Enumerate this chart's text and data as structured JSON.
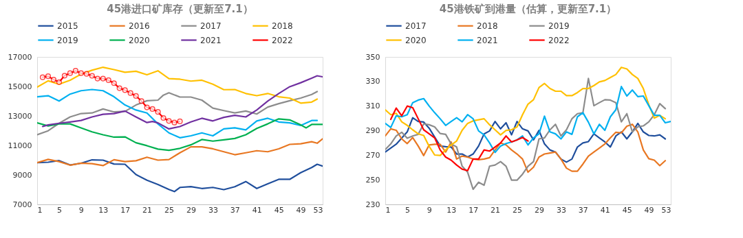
{
  "chart_data": [
    {
      "type": "line",
      "title": "45港进口矿库存（更新至7.1）",
      "xlim": [
        1,
        53
      ],
      "xticks": [
        1,
        5,
        9,
        13,
        17,
        21,
        25,
        29,
        33,
        37,
        41,
        45,
        49,
        53
      ],
      "ylim": [
        7000,
        17000
      ],
      "yticks": [
        7000,
        9000,
        11000,
        13000,
        15000,
        17000
      ],
      "grid": false,
      "legend": "top",
      "marker": "none",
      "series": [
        {
          "name": "2015",
          "color": "#1f4e9c",
          "x": [
            1,
            3,
            5,
            7,
            9,
            11,
            13,
            15,
            17,
            19,
            21,
            23,
            25,
            26,
            27,
            29,
            31,
            33,
            35,
            37,
            39,
            41,
            43,
            45,
            47,
            49,
            51,
            52,
            53
          ],
          "values": [
            9830,
            9860,
            9970,
            9670,
            9790,
            10020,
            10000,
            9740,
            9720,
            9020,
            8640,
            8350,
            8010,
            7870,
            8150,
            8200,
            8080,
            8150,
            8000,
            8200,
            8550,
            8080,
            8400,
            8700,
            8700,
            9150,
            9500,
            9720,
            9600
          ]
        },
        {
          "name": "2016",
          "color": "#e87722",
          "x": [
            1,
            3,
            5,
            7,
            9,
            11,
            13,
            15,
            17,
            19,
            21,
            23,
            25,
            27,
            29,
            31,
            33,
            35,
            37,
            39,
            41,
            43,
            45,
            47,
            49,
            51,
            52,
            53
          ],
          "values": [
            9830,
            10050,
            9900,
            9660,
            9800,
            9760,
            9630,
            10030,
            9900,
            9960,
            10200,
            10000,
            10040,
            10500,
            10900,
            10900,
            10770,
            10570,
            10370,
            10500,
            10640,
            10570,
            10770,
            11070,
            11110,
            11250,
            11150,
            11450
          ]
        },
        {
          "name": "2017",
          "color": "#8c8c8c",
          "x": [
            1,
            3,
            5,
            7,
            9,
            11,
            13,
            15,
            17,
            19,
            21,
            23,
            24,
            25,
            27,
            29,
            31,
            33,
            35,
            37,
            39,
            41,
            43,
            45,
            47,
            49,
            51,
            52
          ],
          "values": [
            11720,
            11990,
            12500,
            12930,
            13160,
            13200,
            13470,
            13270,
            13310,
            13740,
            14030,
            14070,
            14410,
            14570,
            14280,
            14280,
            14070,
            13530,
            13360,
            13200,
            13330,
            13130,
            13600,
            13830,
            14030,
            14210,
            14450,
            14650
          ]
        },
        {
          "name": "2018",
          "color": "#ffc000",
          "x": [
            1,
            3,
            5,
            7,
            9,
            11,
            13,
            15,
            17,
            19,
            21,
            23,
            25,
            27,
            29,
            31,
            33,
            35,
            37,
            39,
            41,
            43,
            45,
            47,
            49,
            51,
            52
          ],
          "values": [
            14950,
            15380,
            15150,
            15420,
            15830,
            16100,
            16300,
            16140,
            15960,
            16030,
            15790,
            16060,
            15530,
            15490,
            15360,
            15420,
            15150,
            14780,
            14790,
            14520,
            14370,
            14520,
            14300,
            14210,
            13870,
            13940,
            14140
          ]
        },
        {
          "name": "2019",
          "color": "#00b0f0",
          "x": [
            1,
            3,
            5,
            7,
            9,
            11,
            13,
            15,
            17,
            19,
            21,
            23,
            25,
            27,
            29,
            31,
            33,
            35,
            37,
            39,
            41,
            43,
            45,
            47,
            49,
            51,
            52
          ],
          "values": [
            14300,
            14370,
            14010,
            14480,
            14710,
            14790,
            14710,
            14300,
            13740,
            13400,
            13200,
            12460,
            11850,
            11520,
            11650,
            11850,
            11650,
            12120,
            12190,
            12050,
            12660,
            12840,
            12590,
            12530,
            12350,
            12690,
            12690
          ]
        },
        {
          "name": "2020",
          "color": "#00b050",
          "x": [
            1,
            3,
            5,
            7,
            9,
            11,
            13,
            15,
            17,
            19,
            21,
            23,
            25,
            27,
            29,
            31,
            33,
            35,
            37,
            39,
            41,
            43,
            45,
            47,
            49,
            50,
            51,
            53
          ],
          "values": [
            12530,
            12320,
            12460,
            12460,
            12190,
            11920,
            11720,
            11560,
            11580,
            11180,
            10980,
            10750,
            10670,
            10800,
            11040,
            11400,
            11290,
            11380,
            11470,
            11720,
            12150,
            12460,
            12800,
            12730,
            12390,
            12190,
            12420,
            12420
          ]
        },
        {
          "name": "2021",
          "color": "#7030a0",
          "x": [
            2,
            3,
            5,
            7,
            9,
            11,
            13,
            15,
            17,
            19,
            21,
            22,
            23,
            25,
            27,
            29,
            31,
            33,
            35,
            37,
            39,
            41,
            43,
            45,
            47,
            49,
            51,
            52,
            53
          ],
          "values": [
            12280,
            12390,
            12500,
            12590,
            12690,
            12930,
            13110,
            13160,
            13330,
            12930,
            12550,
            12620,
            12530,
            12120,
            12280,
            12590,
            12840,
            12660,
            12900,
            13040,
            12930,
            13400,
            14010,
            14520,
            14980,
            15250,
            15560,
            15720,
            15650
          ]
        },
        {
          "name": "2022",
          "color": "#ff0000",
          "marker": "circle",
          "x": [
            2,
            3,
            4,
            5,
            6,
            7,
            8,
            9,
            10,
            11,
            12,
            13,
            14,
            15,
            16,
            17,
            18,
            19,
            20,
            21,
            22,
            23,
            24,
            25,
            26,
            27
          ],
          "values": [
            15620,
            15690,
            15460,
            15290,
            15730,
            15900,
            16060,
            15900,
            15850,
            15720,
            15530,
            15530,
            15420,
            15220,
            14880,
            14750,
            14550,
            14350,
            14010,
            13580,
            13470,
            13270,
            12860,
            12660,
            12550,
            12630
          ]
        }
      ]
    },
    {
      "type": "line",
      "title": "45港铁矿到港量（估算，更新至7.1）",
      "xlim": [
        1,
        53
      ],
      "xticks": [
        1,
        5,
        9,
        13,
        17,
        21,
        25,
        29,
        33,
        37,
        41,
        45,
        49,
        53
      ],
      "ylim": [
        230,
        350
      ],
      "yticks": [
        230,
        250,
        270,
        290,
        310,
        330,
        350
      ],
      "grid": false,
      "legend": "top",
      "marker": "none",
      "series": [
        {
          "name": "2017",
          "color": "#1f4e9c",
          "x": [
            1,
            3,
            5,
            6,
            7,
            8,
            9,
            11,
            12,
            13,
            14,
            15,
            16,
            17,
            18,
            19,
            20,
            21,
            22,
            23,
            24,
            25,
            26,
            27,
            28,
            29,
            30,
            31,
            32,
            33,
            34,
            35,
            36,
            37,
            38,
            39,
            40,
            41,
            42,
            43,
            44,
            45,
            46,
            47,
            48,
            49,
            50,
            51,
            52
          ],
          "values": [
            272.6,
            279,
            289,
            300.5,
            297.5,
            297,
            292,
            277.5,
            277,
            276.7,
            271,
            271,
            268.5,
            271,
            277.5,
            287.4,
            289.8,
            297.5,
            291.5,
            296.4,
            286.6,
            297.5,
            291.5,
            289.8,
            282.5,
            290.2,
            279.2,
            274.3,
            272.6,
            266.9,
            264.4,
            266.9,
            276.7,
            280,
            281.1,
            287.4,
            284.1,
            280.8,
            276.7,
            285.7,
            289,
            283.3,
            289,
            295.9,
            289,
            286.1,
            285.7,
            286.6,
            283.3
          ]
        },
        {
          "name": "2018",
          "color": "#e87722",
          "x": [
            1,
            2,
            3,
            4,
            5,
            6,
            7,
            8,
            9,
            10,
            11,
            12,
            13,
            14,
            15,
            16,
            17,
            18,
            19,
            20,
            21,
            22,
            23,
            24,
            25,
            26,
            27,
            28,
            29,
            30,
            31,
            32,
            33,
            34,
            35,
            36,
            37,
            38,
            39,
            40,
            41,
            42,
            43,
            44,
            45,
            46,
            47,
            48,
            49,
            50,
            51,
            52
          ],
          "values": [
            285.7,
            291.5,
            290.3,
            283.3,
            279.5,
            284.4,
            277.5,
            269.7,
            278.4,
            278.9,
            278.9,
            272.6,
            280.8,
            266.9,
            269.3,
            268.5,
            266.9,
            266.4,
            266.9,
            268,
            274.3,
            280,
            278.4,
            274.3,
            271,
            266.9,
            256.2,
            260.3,
            268.5,
            271,
            271.8,
            272.6,
            266.9,
            259.5,
            257,
            257,
            262.8,
            269.3,
            272.6,
            275.9,
            279.2,
            284.1,
            288.7,
            288.2,
            293.6,
            295.2,
            289,
            274.3,
            267.2,
            266,
            261.5,
            265.6
          ]
        },
        {
          "name": "2019",
          "color": "#8c8c8c",
          "x": [
            1,
            2,
            3,
            4,
            5,
            6,
            7,
            8,
            9,
            10,
            11,
            12,
            13,
            14,
            15,
            16,
            17,
            18,
            19,
            20,
            21,
            22,
            23,
            24,
            25,
            26,
            27,
            28,
            29,
            30,
            31,
            32,
            33,
            34,
            35,
            36,
            37,
            38,
            39,
            40,
            41,
            42,
            43,
            44,
            45,
            46,
            47,
            48,
            49,
            50,
            51,
            52
          ],
          "values": [
            274.6,
            279.2,
            285.7,
            288.7,
            283.8,
            285.7,
            287,
            295.6,
            294.8,
            293.1,
            287.7,
            287,
            279.2,
            276.7,
            261.1,
            256.2,
            242.3,
            248,
            245.6,
            261.1,
            262,
            264.8,
            261.1,
            249.7,
            249.7,
            254.6,
            261.1,
            264.8,
            283.3,
            284.1,
            290.7,
            295.2,
            285.7,
            290.7,
            299.7,
            303.8,
            304.6,
            332.5,
            310.3,
            312.8,
            315.2,
            314.9,
            312.8,
            297.2,
            303.8,
            289,
            293.1,
            293.9,
            297.2,
            303,
            312,
            307.9
          ]
        },
        {
          "name": "2020",
          "color": "#ffc000",
          "x": [
            1,
            2,
            3,
            4,
            5,
            6,
            7,
            8,
            9,
            10,
            11,
            12,
            13,
            14,
            15,
            16,
            17,
            18,
            19,
            20,
            21,
            22,
            23,
            24,
            25,
            26,
            27,
            28,
            29,
            30,
            31,
            32,
            33,
            34,
            35,
            36,
            37,
            38,
            39,
            40,
            41,
            42,
            43,
            44,
            45,
            46,
            47,
            48,
            49,
            50,
            51,
            52
          ],
          "values": [
            307,
            303,
            304.1,
            297.2,
            294.3,
            290.7,
            287.4,
            286.1,
            277.2,
            270.2,
            269.8,
            274.3,
            278.4,
            281.6,
            290.3,
            295.9,
            298,
            298.9,
            299.7,
            294.8,
            290.7,
            286.6,
            290.2,
            290.7,
            293.1,
            303,
            311.6,
            315.2,
            325.1,
            328.4,
            324.3,
            322.1,
            322.1,
            318.5,
            318.5,
            321,
            324.3,
            324.3,
            326.7,
            329.7,
            330.8,
            333.3,
            335.7,
            341.5,
            340.2,
            335.7,
            332.5,
            324.3,
            311.1,
            300.2,
            302.5,
            299.7
          ]
        },
        {
          "name": "2021",
          "color": "#00b0f0",
          "x": [
            1,
            2,
            3,
            4,
            5,
            6,
            7,
            8,
            9,
            10,
            11,
            12,
            13,
            14,
            15,
            16,
            17,
            18,
            19,
            20,
            21,
            22,
            23,
            24,
            25,
            26,
            27,
            28,
            29,
            30,
            31,
            32,
            33,
            34,
            35,
            36,
            37,
            38,
            39,
            40,
            41,
            42,
            43,
            44,
            45,
            46,
            47,
            48,
            49,
            50,
            51,
            52,
            53
          ],
          "values": [
            295.9,
            292.6,
            302.1,
            301.3,
            303,
            312.8,
            314.9,
            316.1,
            310,
            304.6,
            299.7,
            294.3,
            297.5,
            300.5,
            297.2,
            303,
            299.7,
            289.8,
            286.6,
            280,
            272.3,
            277.5,
            279.5,
            280.8,
            282.5,
            285.7,
            278.4,
            284.1,
            287.4,
            301.8,
            289,
            287.4,
            283.3,
            289,
            287,
            301.3,
            304.6,
            296.9,
            287.4,
            295.2,
            290.3,
            301.3,
            307,
            325.9,
            318.2,
            323.1,
            317.7,
            318.2,
            310.3,
            302.5,
            302.5,
            296.4,
            297.5
          ]
        },
        {
          "name": "2022",
          "color": "#ff0000",
          "x": [
            2,
            3,
            4,
            5,
            6,
            7,
            8,
            9,
            10,
            11,
            12,
            13,
            14,
            15,
            16,
            17,
            18,
            19,
            20,
            21,
            22,
            23,
            24,
            25,
            26,
            27
          ],
          "values": [
            299.2,
            308.4,
            302.1,
            310,
            308.7,
            299.7,
            290.7,
            287.4,
            284.1,
            274.3,
            268.5,
            266,
            262,
            258.7,
            257.5,
            266.9,
            266.9,
            274.3,
            273.4,
            276.7,
            280,
            285.7,
            280.8,
            282.5,
            284.4,
            281.6
          ]
        }
      ]
    }
  ]
}
